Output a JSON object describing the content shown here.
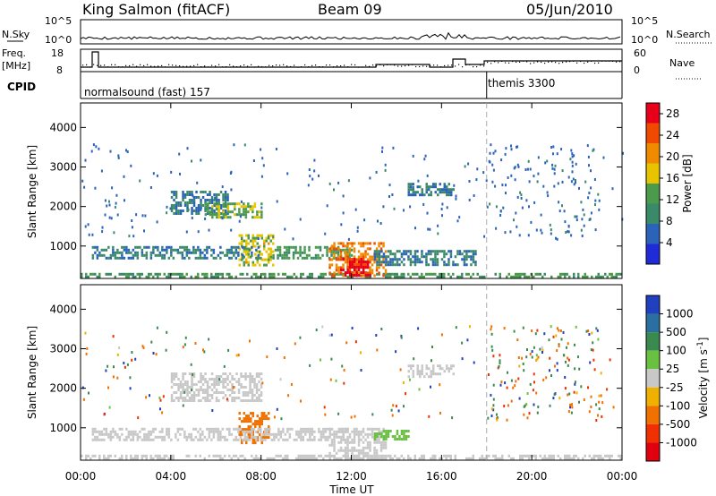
{
  "header": {
    "station": "King Salmon (fitACF)",
    "beam": "Beam 09",
    "date": "05/Jun/2010"
  },
  "noise_panel": {
    "left_label": "N.Sky",
    "right_label": "N.Search",
    "left_ticks": [
      "10^5",
      "10^0"
    ],
    "right_ticks": [
      "10^5",
      "10^0"
    ]
  },
  "freq_panel": {
    "left_label_top": "Freq.",
    "left_label_unit": "[MHz]",
    "right_label": "Nave",
    "left_ticks": [
      "18",
      "8"
    ],
    "right_ticks": [
      "60",
      "0"
    ]
  },
  "cpid_panel": {
    "label": "CPID",
    "modes": [
      {
        "name": "normalsound (fast) 157",
        "start_hour": 0
      },
      {
        "name": "themis 3300",
        "start_hour": 18
      }
    ]
  },
  "chart_data": [
    {
      "type": "heatmap",
      "title": "",
      "xlabel": "Time UT",
      "ylabel": "Slant Range [km]",
      "xlim": [
        0,
        24
      ],
      "ylim": [
        180,
        4620
      ],
      "x_ticks": [
        "00:00",
        "04:00",
        "08:00",
        "12:00",
        "16:00",
        "20:00",
        "00:00"
      ],
      "y_ticks": [
        "1000",
        "2000",
        "3000",
        "4000"
      ],
      "colorbar": {
        "label": "Power [dB]",
        "ticks": [
          "4",
          "8",
          "12",
          "16",
          "20",
          "24",
          "28"
        ],
        "range": [
          0,
          30
        ],
        "colors": [
          "#1e2bd6",
          "#2a63b8",
          "#3a8a6a",
          "#4c9a4c",
          "#e8c400",
          "#f08a00",
          "#f04a00",
          "#e8001a"
        ]
      },
      "echo_regions": [
        {
          "t0": 0.0,
          "t1": 24.0,
          "r0": 200,
          "r1": 320,
          "level": 12
        },
        {
          "t0": 4.0,
          "t1": 6.5,
          "r0": 1800,
          "r1": 2400,
          "level": 8
        },
        {
          "t0": 5.5,
          "t1": 8.0,
          "r0": 1700,
          "r1": 2100,
          "level": 14
        },
        {
          "t0": 7.0,
          "t1": 8.5,
          "r0": 500,
          "r1": 1300,
          "level": 16
        },
        {
          "t0": 0.5,
          "t1": 8.0,
          "r0": 700,
          "r1": 1000,
          "level": 8
        },
        {
          "t0": 8.5,
          "t1": 12.0,
          "r0": 700,
          "r1": 1000,
          "level": 12
        },
        {
          "t0": 11.0,
          "t1": 13.5,
          "r0": 250,
          "r1": 1100,
          "level": 22
        },
        {
          "t0": 11.5,
          "t1": 12.8,
          "r0": 250,
          "r1": 700,
          "level": 28
        },
        {
          "t0": 14.5,
          "t1": 16.5,
          "r0": 2300,
          "r1": 2600,
          "level": 8
        },
        {
          "t0": 13.0,
          "t1": 17.5,
          "r0": 500,
          "r1": 900,
          "level": 8
        }
      ]
    },
    {
      "type": "heatmap",
      "title": "",
      "xlabel": "Time UT",
      "ylabel": "Slant Range [km]",
      "xlim": [
        0,
        24
      ],
      "ylim": [
        180,
        4620
      ],
      "x_ticks": [
        "00:00",
        "04:00",
        "08:00",
        "12:00",
        "16:00",
        "20:00",
        "00:00"
      ],
      "y_ticks": [
        "1000",
        "2000",
        "3000",
        "4000"
      ],
      "colorbar": {
        "label": "Velocity [m s^-1]",
        "ticks": [
          "1000",
          "500",
          "100",
          "25",
          "-25",
          "-100",
          "-500",
          "-1000"
        ],
        "range": [
          -1000,
          1000
        ],
        "colors": [
          "#2040c0",
          "#2b6fa0",
          "#3a8a50",
          "#6ac040",
          "#c8c8c8",
          "#f0b000",
          "#f07000",
          "#f03000",
          "#e00010"
        ]
      },
      "echo_regions": [
        {
          "t0": 0.0,
          "t1": 24.0,
          "r0": 200,
          "r1": 320,
          "level": 0
        },
        {
          "t0": 4.0,
          "t1": 8.0,
          "r0": 1700,
          "r1": 2400,
          "level": 0
        },
        {
          "t0": 7.0,
          "t1": 8.3,
          "r0": 600,
          "r1": 1400,
          "level": -400
        },
        {
          "t0": 0.5,
          "t1": 12.0,
          "r0": 700,
          "r1": 1000,
          "level": 0
        },
        {
          "t0": 11.0,
          "t1": 13.5,
          "r0": 250,
          "r1": 1000,
          "level": 0
        },
        {
          "t0": 13.0,
          "t1": 14.5,
          "r0": 700,
          "r1": 950,
          "level": 60
        },
        {
          "t0": 14.5,
          "t1": 16.5,
          "r0": 2300,
          "r1": 2600,
          "level": 0
        }
      ]
    }
  ]
}
